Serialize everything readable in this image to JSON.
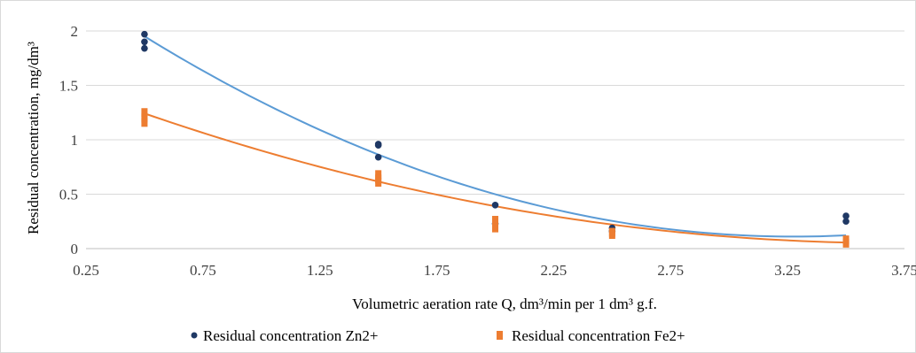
{
  "chart_data": {
    "type": "scatter",
    "xlabel": "Volumetric aeration rate Q, dm³/min per 1 dm³ g.f.",
    "ylabel": "Residual concentration, mg/dm³",
    "xlim": [
      0.25,
      3.75
    ],
    "ylim": [
      0,
      2
    ],
    "x_ticks": [
      "0.25",
      "0.75",
      "1.25",
      "1.75",
      "2.25",
      "2.75",
      "3.25",
      "3.75"
    ],
    "y_ticks": [
      "0",
      "0.5",
      "1",
      "1.5",
      "2"
    ],
    "grid": "horizontal",
    "legend_position": "bottom",
    "series": [
      {
        "name": "Residual concentration Zn2+",
        "color": "#1f3864",
        "marker": "circle",
        "points": [
          [
            0.5,
            1.97
          ],
          [
            0.5,
            1.9
          ],
          [
            0.5,
            1.84
          ],
          [
            1.5,
            0.96
          ],
          [
            1.5,
            0.95
          ],
          [
            1.5,
            0.84
          ],
          [
            2.0,
            0.4
          ],
          [
            2.0,
            0.23
          ],
          [
            2.5,
            0.19
          ],
          [
            2.5,
            0.16
          ],
          [
            3.5,
            0.3
          ],
          [
            3.5,
            0.25
          ]
        ],
        "trendline": {
          "color": "#5b9bd5",
          "coefficients": [
            0.2386,
            -1.564,
            2.6733
          ]
        }
      },
      {
        "name": "Residual concentration Fe2+",
        "color": "#ed7d31",
        "marker": "square",
        "points": [
          [
            0.5,
            1.25
          ],
          [
            0.5,
            1.2
          ],
          [
            0.5,
            1.16
          ],
          [
            1.5,
            0.68
          ],
          [
            1.5,
            0.64
          ],
          [
            1.5,
            0.61
          ],
          [
            2.0,
            0.26
          ],
          [
            2.0,
            0.22
          ],
          [
            2.0,
            0.19
          ],
          [
            2.5,
            0.15
          ],
          [
            2.5,
            0.13
          ],
          [
            3.5,
            0.08
          ],
          [
            3.5,
            0.05
          ]
        ],
        "trendline": {
          "color": "#ed7d31",
          "coefficients": [
            0.1152,
            -0.8562,
            1.6414
          ]
        }
      }
    ]
  }
}
